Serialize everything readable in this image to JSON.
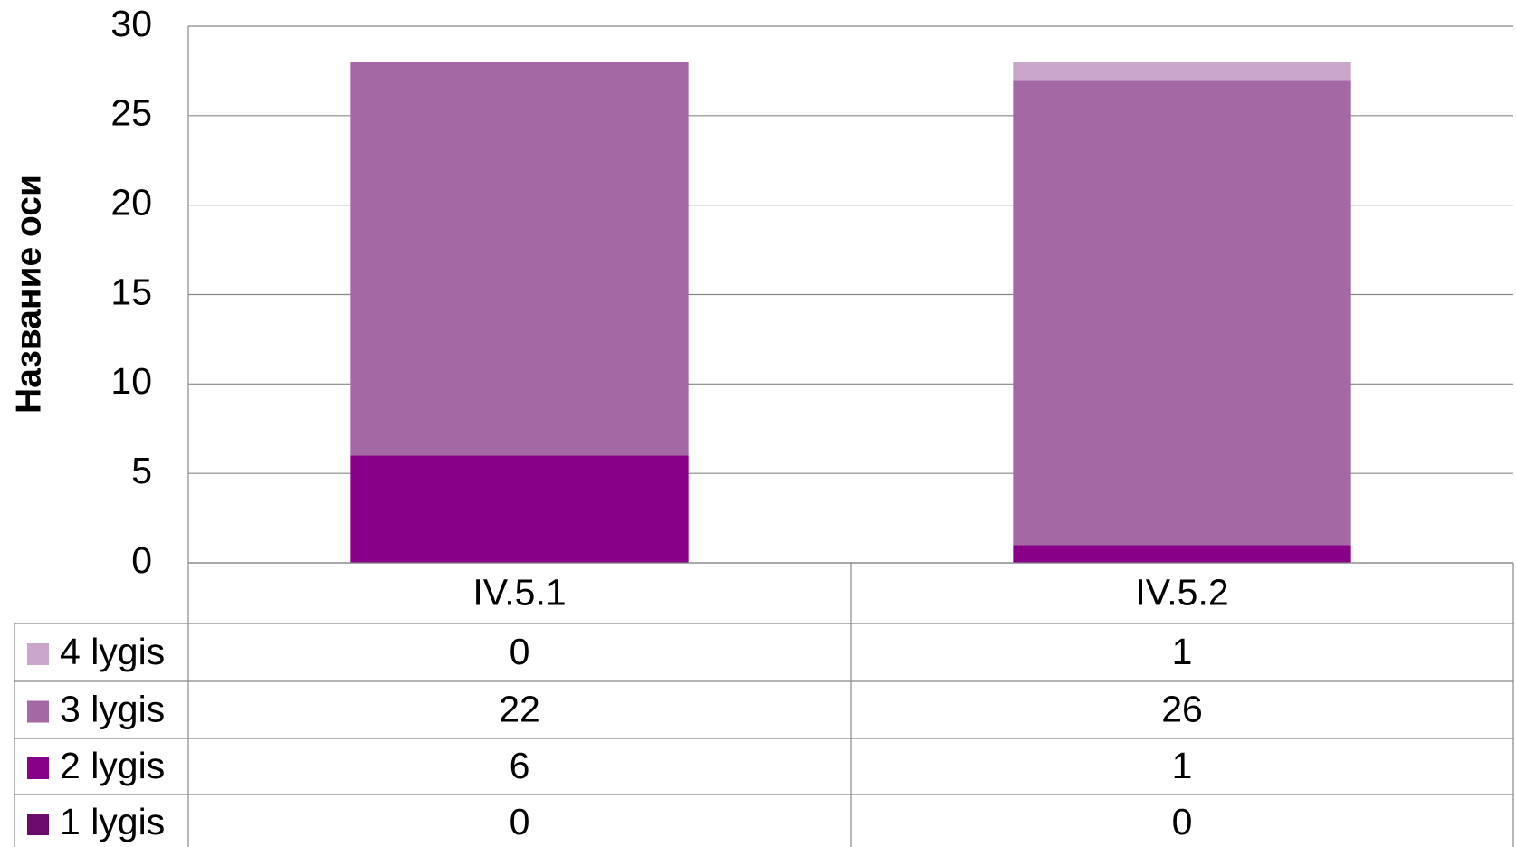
{
  "chart_data": {
    "type": "stacked_bar",
    "y_axis_title": "Название оси",
    "categories": [
      "IV.5.1",
      "IV.5.2"
    ],
    "series": [
      {
        "name": "1 lygis",
        "color": "#6b0a6b",
        "values": [
          0,
          0
        ]
      },
      {
        "name": "2 lygis",
        "color": "#870087",
        "values": [
          6,
          1
        ]
      },
      {
        "name": "3 lygis",
        "color": "#a468a4",
        "values": [
          22,
          26
        ]
      },
      {
        "name": "4 lygis",
        "color": "#c9a5c9",
        "values": [
          0,
          1
        ]
      }
    ],
    "ylim": [
      0,
      30
    ],
    "yticks": [
      0,
      5,
      10,
      15,
      20,
      25,
      30
    ],
    "grid": true
  }
}
